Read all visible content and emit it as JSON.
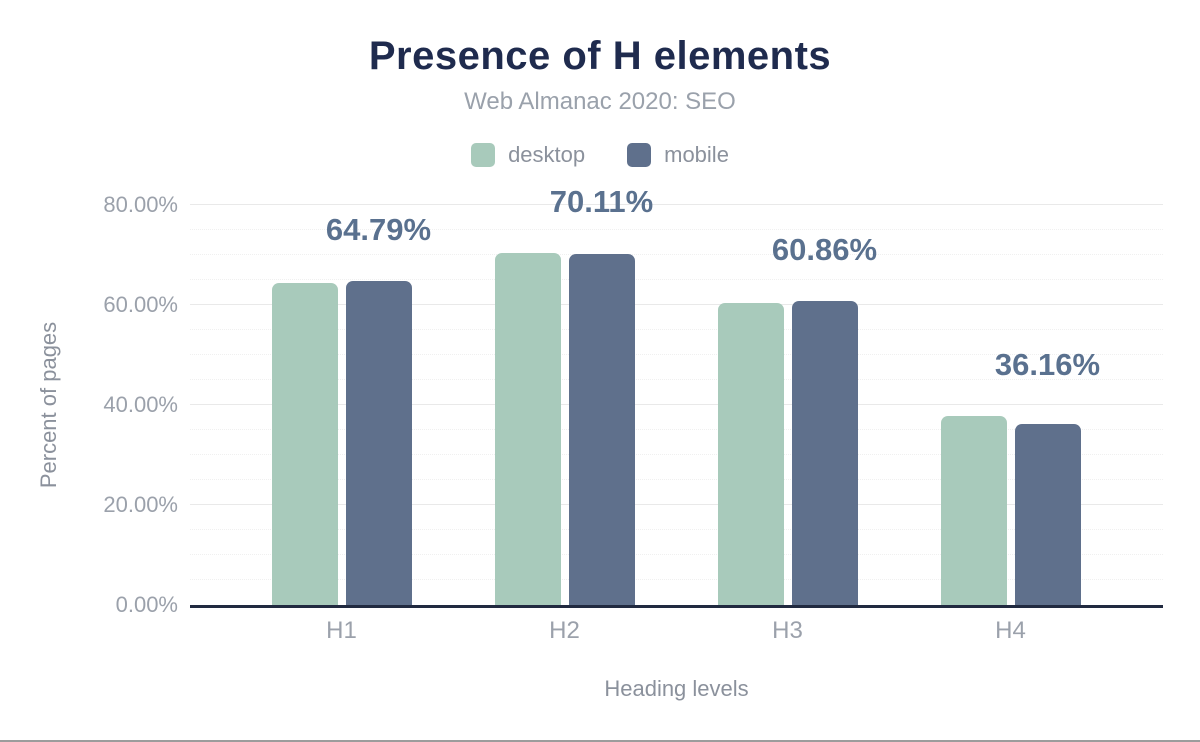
{
  "chart_data": {
    "type": "grouped_bar",
    "title": "Presence of H elements",
    "subtitle": "Web Almanac 2020: SEO",
    "xlabel": "Heading levels",
    "ylabel": "Percent of pages",
    "categories": [
      "H1",
      "H2",
      "H3",
      "H4"
    ],
    "series": [
      {
        "name": "desktop",
        "color": "#a8cabb",
        "values": [
          64.4,
          70.5,
          60.4,
          37.8
        ]
      },
      {
        "name": "mobile",
        "color": "#5f708c",
        "values": [
          64.79,
          70.11,
          60.86,
          36.16
        ]
      }
    ],
    "bar_labels": {
      "series": "mobile",
      "values": [
        "64.79%",
        "70.11%",
        "60.86%",
        "36.16%"
      ]
    },
    "y_axis": {
      "min": 0,
      "max": 80,
      "major_step": 20,
      "minor_step": 5,
      "ticks": [
        "0.00%",
        "20.00%",
        "40.00%",
        "60.00%",
        "80.00%"
      ]
    },
    "legend": {
      "position": "top",
      "entries": [
        "desktop",
        "mobile"
      ]
    },
    "grid": {
      "major": true,
      "minor": true
    },
    "colors": {
      "title": "#1f2b4e",
      "subtitle": "#9aa1ab",
      "data_label": "#5a718f",
      "axis_line": "#212a40",
      "tick_label": "#9ba1ab",
      "axis_title": "#8b919c",
      "grid_major": "#e9e9e9",
      "grid_minor": "#f0f0f0",
      "bottom_rule": "#9c9c9c"
    }
  }
}
